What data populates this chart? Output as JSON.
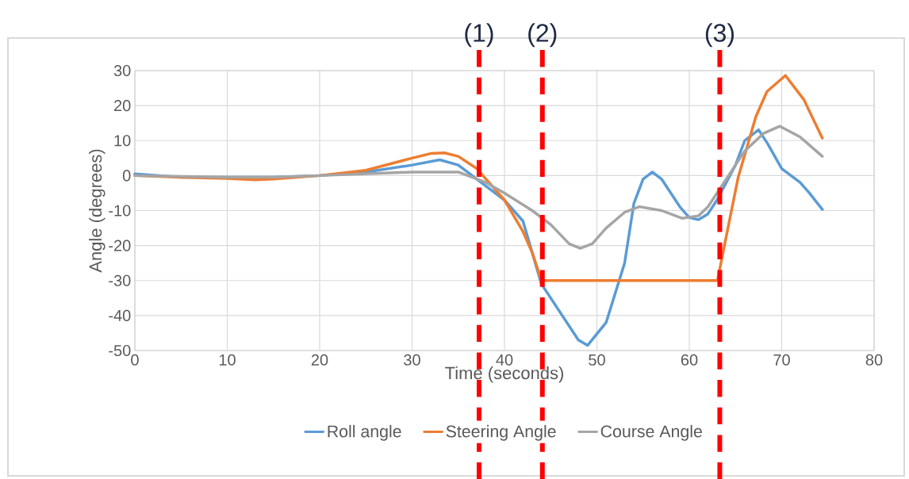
{
  "chart_data": {
    "type": "line",
    "xlabel": "Time (seconds)",
    "ylabel": "Angle (degrees)",
    "xlim": [
      0,
      80
    ],
    "ylim": [
      -50,
      30
    ],
    "xticks": [
      0,
      10,
      20,
      30,
      40,
      50,
      60,
      70,
      80
    ],
    "yticks": [
      -50,
      -40,
      -30,
      -20,
      -10,
      0,
      10,
      20,
      30
    ],
    "grid": true,
    "legend": "bottom",
    "marker": "none",
    "line_style": "solid",
    "series": [
      {
        "name": "Roll angle",
        "color": "#5b9bd5",
        "x": [
          0,
          5,
          10,
          15,
          20,
          25,
          30,
          33,
          35,
          37,
          40,
          42,
          44,
          46,
          48,
          49,
          51,
          53,
          54,
          55,
          56,
          57,
          59,
          60,
          61,
          62,
          63,
          65,
          66,
          67.5,
          68.5,
          70,
          71,
          72,
          73,
          74.4
        ],
        "values": [
          0.5,
          -0.5,
          -0.5,
          -0.5,
          0,
          1,
          3,
          4.5,
          3,
          -1,
          -7,
          -13,
          -31,
          -39,
          -47,
          -48.5,
          -42,
          -25,
          -8,
          -1,
          1,
          -1,
          -9,
          -12,
          -12.6,
          -11,
          -7,
          3,
          10,
          13.1,
          9,
          2,
          0,
          -2,
          -5,
          -9.7
        ]
      },
      {
        "name": "Steering Angle",
        "color": "#ed7d31",
        "x": [
          0,
          5,
          10,
          13,
          15,
          20,
          25,
          30,
          32,
          33.5,
          35,
          37,
          40,
          42,
          43,
          44,
          63.05,
          63.8,
          65.3,
          67.2,
          68.4,
          70.4,
          72.4,
          74.4
        ],
        "values": [
          0,
          -0.5,
          -0.8,
          -1.2,
          -1,
          0,
          1.5,
          5,
          6.3,
          6.5,
          5.5,
          2,
          -7,
          -16,
          -22,
          -30,
          -30,
          -20,
          -0.4,
          16.8,
          24,
          28.6,
          21.7,
          10.7
        ]
      },
      {
        "name": "Course Angle",
        "color": "#a5a5a5",
        "x": [
          0,
          10,
          15,
          20,
          30,
          33,
          35,
          38,
          40,
          43,
          45,
          47,
          48.2,
          49.5,
          51,
          53,
          54.6,
          57,
          59.2,
          61,
          62,
          63,
          65,
          66,
          68,
          69.8,
          72,
          74.4
        ],
        "values": [
          0,
          -0.5,
          -0.5,
          0,
          1,
          1,
          1,
          -2,
          -5,
          -10,
          -14,
          -19.5,
          -20.8,
          -19.5,
          -15,
          -10.5,
          -8.9,
          -10,
          -12.2,
          -11.5,
          -9,
          -5,
          3,
          7,
          12,
          14.1,
          11,
          5.5
        ]
      }
    ],
    "ref_lines": [
      {
        "axis": "x",
        "value": 37.25,
        "color": "#ff0000",
        "line_style": "dashed"
      },
      {
        "axis": "x",
        "value": 44.1,
        "color": "#ff0000",
        "line_style": "dashed"
      },
      {
        "axis": "x",
        "value": 63.3,
        "color": "#ff0000",
        "line_style": "dashed"
      }
    ],
    "annotations": [
      "(1)",
      "(2)",
      "(3)"
    ]
  }
}
